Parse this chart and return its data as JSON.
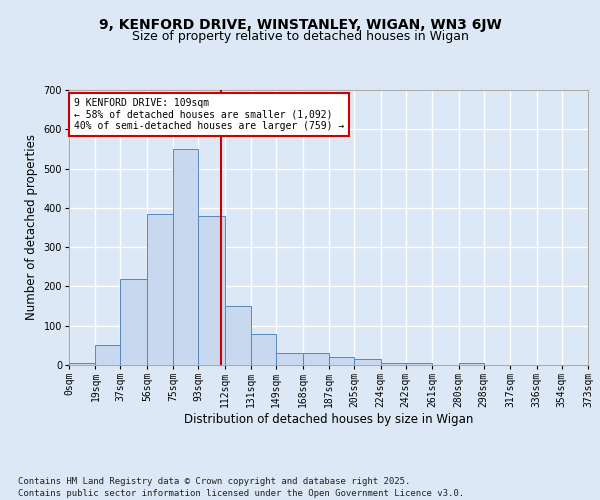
{
  "title_line1": "9, KENFORD DRIVE, WINSTANLEY, WIGAN, WN3 6JW",
  "title_line2": "Size of property relative to detached houses in Wigan",
  "xlabel": "Distribution of detached houses by size in Wigan",
  "ylabel": "Number of detached properties",
  "bar_color": "#c8d8ee",
  "bar_edge_color": "#5588bb",
  "bin_edges": [
    0,
    19,
    37,
    56,
    75,
    93,
    112,
    131,
    149,
    168,
    187,
    205,
    224,
    242,
    261,
    280,
    298,
    317,
    336,
    354,
    373
  ],
  "bar_heights": [
    5,
    50,
    220,
    385,
    550,
    380,
    150,
    80,
    30,
    30,
    20,
    15,
    5,
    5,
    0,
    5,
    0,
    0,
    0,
    0
  ],
  "vline_x": 109,
  "vline_color": "#cc0000",
  "annotation_line1": "9 KENFORD DRIVE: 109sqm",
  "annotation_line2": "← 58% of detached houses are smaller (1,092)",
  "annotation_line3": "40% of semi-detached houses are larger (759) →",
  "annotation_box_color": "#ffffff",
  "annotation_box_edge": "#cc0000",
  "ylim": [
    0,
    700
  ],
  "yticks": [
    0,
    100,
    200,
    300,
    400,
    500,
    600,
    700
  ],
  "background_color": "#dce8f5",
  "grid_color": "#ffffff",
  "tick_labels": [
    "0sqm",
    "19sqm",
    "37sqm",
    "56sqm",
    "75sqm",
    "93sqm",
    "112sqm",
    "131sqm",
    "149sqm",
    "168sqm",
    "187sqm",
    "205sqm",
    "224sqm",
    "242sqm",
    "261sqm",
    "280sqm",
    "298sqm",
    "317sqm",
    "336sqm",
    "354sqm",
    "373sqm"
  ],
  "footer_text": "Contains HM Land Registry data © Crown copyright and database right 2025.\nContains public sector information licensed under the Open Government Licence v3.0.",
  "title_fontsize": 10,
  "subtitle_fontsize": 9,
  "label_fontsize": 8.5,
  "tick_fontsize": 7,
  "footer_fontsize": 6.5,
  "fig_bg_color": "#dce8f5"
}
